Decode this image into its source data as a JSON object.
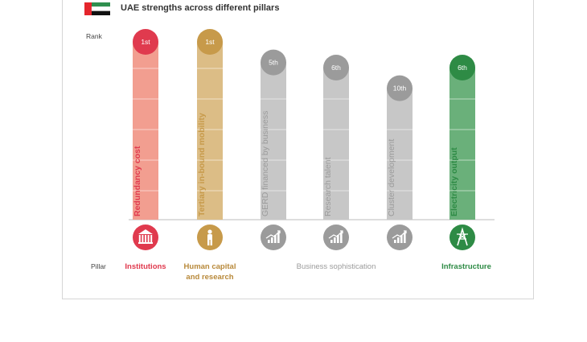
{
  "title": "UAE strengths across different pillars",
  "rank_label": "Rank",
  "pillar_label": "Pillar",
  "flag_colors": {
    "red": "#e4252c",
    "green": "#2f8f4e",
    "white": "#ffffff",
    "black": "#111111"
  },
  "chart_data": {
    "type": "bar",
    "ylabel": "Rank",
    "categories": [
      "Redundancy cost",
      "Tertiary in-bound mobility",
      "GERD financed by business",
      "Research talent",
      "Cluster development",
      "Electricity output"
    ],
    "series": [
      {
        "values": [
          1,
          1,
          5,
          6,
          10,
          6
        ]
      }
    ],
    "rank_text": [
      "1st",
      "1st",
      "5th",
      "6th",
      "10th",
      "6th"
    ],
    "pillars": [
      "Institutions",
      "Human capital and research",
      "Business sophistication",
      "Business sophistication",
      "Business sophistication",
      "Infrastructure"
    ],
    "colors": [
      "#e03a4e",
      "#c79a4a",
      "#9b9b9b",
      "#9b9b9b",
      "#9b9b9b",
      "#2e8b45"
    ],
    "bar_colors": [
      "#f29e90",
      "#dcbd86",
      "#c7c7c7",
      "#c7c7c7",
      "#c7c7c7",
      "#6ab07a"
    ],
    "icons": [
      "institution-icon",
      "person-icon",
      "growth-chart-icon",
      "growth-chart-icon",
      "growth-chart-icon",
      "power-tower-icon"
    ]
  },
  "pillar_groups": [
    {
      "label": "Institutions",
      "color": "#e03a4e"
    },
    {
      "label": "Human capital\nand research",
      "color": "#b8893a"
    },
    {
      "label": "Business sophistication",
      "color": "#9b9b9b"
    },
    {
      "label": "Infrastructure",
      "color": "#2e8b45"
    }
  ]
}
